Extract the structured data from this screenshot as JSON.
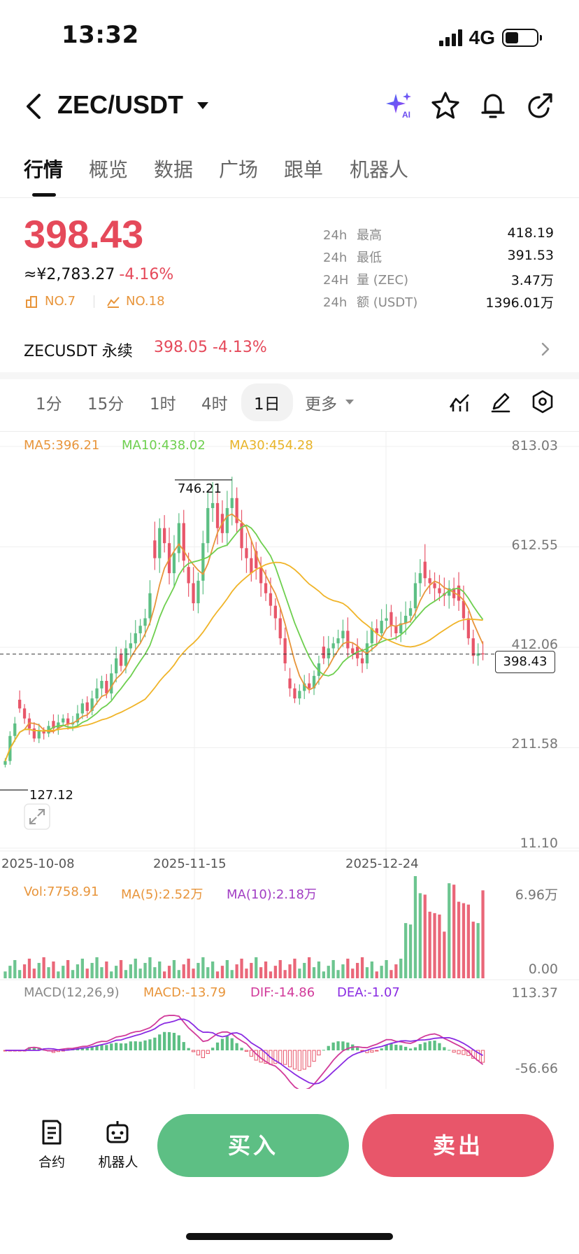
{
  "status_bar": {
    "time": "13:32",
    "network": "4G",
    "battery_level": 0.44
  },
  "header": {
    "pair": "ZEC/USDT",
    "icons": [
      "ai-sparkle-icon",
      "star-icon",
      "bell-icon",
      "share-icon"
    ]
  },
  "tabs": [
    {
      "label": "行情",
      "active": true
    },
    {
      "label": "概览"
    },
    {
      "label": "数据"
    },
    {
      "label": "广场"
    },
    {
      "label": "跟单"
    },
    {
      "label": "机器人"
    }
  ],
  "price": {
    "last": "398.43",
    "cny": "≈¥2,783.27",
    "change": "-4.16%",
    "rank1": "NO.7",
    "rank2": "NO.18"
  },
  "stats": [
    {
      "period": "24h",
      "label": "最高",
      "value": "418.19"
    },
    {
      "period": "24h",
      "label": "最低",
      "value": "391.53"
    },
    {
      "period": "24H",
      "label": "量 (ZEC)",
      "value": "3.47万"
    },
    {
      "period": "24h",
      "label": "额 (USDT)",
      "value": "1396.01万"
    }
  ],
  "perp": {
    "name": "ZECUSDT 永续",
    "price": "398.05",
    "change": "-4.13%"
  },
  "intervals": [
    {
      "label": "1分"
    },
    {
      "label": "15分"
    },
    {
      "label": "1时"
    },
    {
      "label": "4时"
    },
    {
      "label": "1日",
      "active": true
    },
    {
      "label": "更多"
    }
  ],
  "chart": {
    "ma_legend": {
      "ma5": "MA5:396.21",
      "ma10": "MA10:438.02",
      "ma30": "MA30:454.28"
    },
    "y_axis": [
      "813.03",
      "612.55",
      "412.06",
      "211.58",
      "11.10"
    ],
    "dates": [
      "2025-10-08",
      "2025-11-15",
      "2025-12-24"
    ],
    "high_annotation": "746.21",
    "low_annotation": "127.12",
    "current_price_tag": "398.43",
    "volume_legend": {
      "vol": "Vol:7758.91",
      "ma5": "MA(5):2.52万",
      "ma10": "MA(10):2.18万"
    },
    "volume_axis": [
      "6.96万",
      "0.00"
    ],
    "macd_legend": {
      "title": "MACD(12,26,9)",
      "macd": "MACD:-13.79",
      "dif": "DIF:-14.86",
      "dea": "DEA:-1.07"
    },
    "macd_axis": [
      "113.37",
      "-56.66"
    ],
    "colors": {
      "up": "#5dbf84",
      "down": "#e8566a",
      "ma5": "#e8953b",
      "ma10": "#6ecf4f",
      "ma30": "#f0b429",
      "dif": "#d13a9a",
      "dea": "#8a2be2"
    }
  },
  "chart_data": {
    "type": "candlestick",
    "ylim": [
      11.1,
      813.03
    ],
    "x_ticks": [
      "2025-10-08",
      "2025-11-15",
      "2025-12-24"
    ],
    "closes": [
      185,
      235,
      260,
      290,
      270,
      250,
      230,
      245,
      240,
      255,
      250,
      262,
      270,
      258,
      262,
      280,
      300,
      285,
      310,
      330,
      345,
      320,
      360,
      390,
      375,
      410,
      420,
      440,
      455,
      470,
      520,
      590,
      650,
      620,
      560,
      600,
      660,
      585,
      540,
      500,
      545,
      620,
      690,
      700,
      650,
      640,
      690,
      710,
      660,
      610,
      590,
      560,
      570,
      540,
      520,
      495,
      470,
      430,
      380,
      330,
      310,
      325,
      340,
      330,
      355,
      380,
      390,
      410,
      420,
      430,
      445,
      410,
      400,
      390,
      380,
      420,
      450,
      440,
      465,
      470,
      455,
      440,
      460,
      475,
      490,
      540,
      560,
      550,
      540,
      530,
      520,
      515,
      530,
      510,
      505,
      470,
      430,
      395,
      400,
      398
    ],
    "high_marker": 746.21,
    "low_marker": 127.12,
    "last": 398.43
  }
}
